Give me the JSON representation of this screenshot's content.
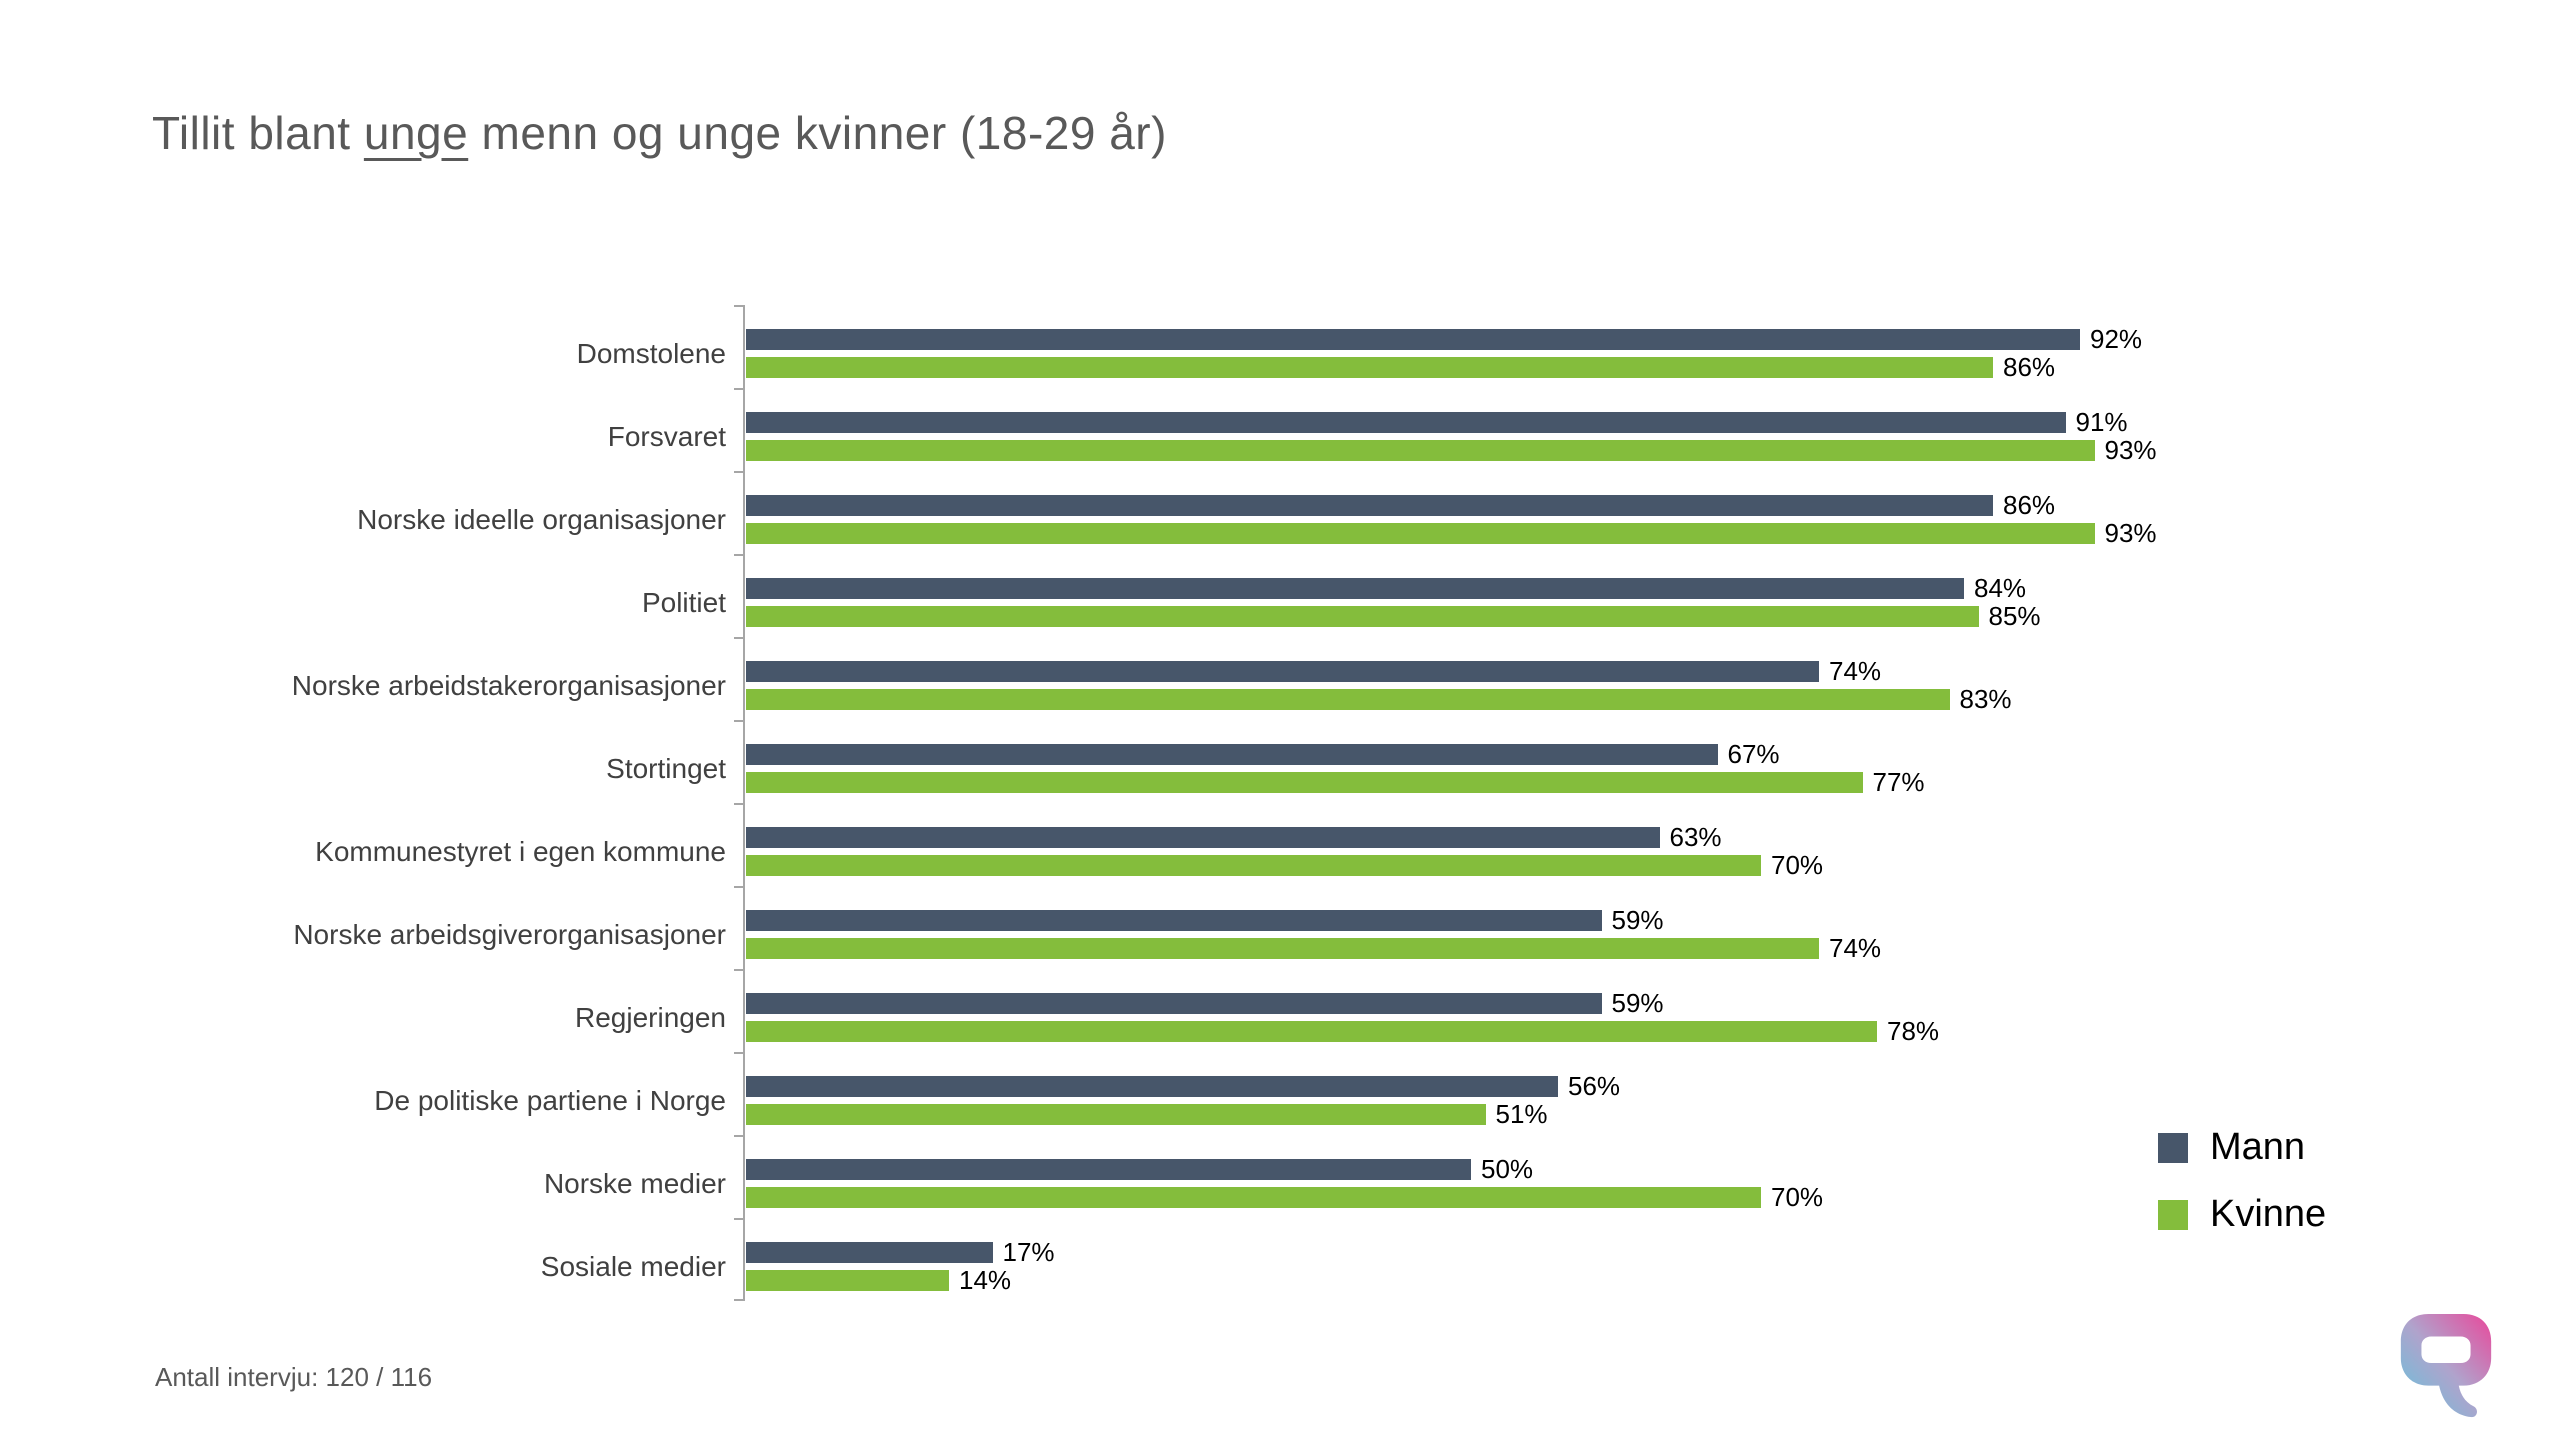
{
  "slide": {
    "title": {
      "prefix": "Tillit blant ",
      "underlined": "unge",
      "suffix": " menn og unge kvinner (18-29 år)"
    },
    "footer": "Antall intervju: 120 / 116"
  },
  "colors": {
    "mann": "#47566A",
    "kvinne": "#84BD3C",
    "axis": "#A6A6A6",
    "title_text": "#595959",
    "category_label": "#404040",
    "value_label": "#000000",
    "logo_gradient_start": "#62C4DC",
    "logo_gradient_end": "#E9489B"
  },
  "chart_data": {
    "type": "bar",
    "orientation": "horizontal",
    "title": "Tillit blant unge menn og unge kvinner (18-29 år)",
    "categories": [
      "Domstolene",
      "Forsvaret",
      "Norske ideelle organisasjoner",
      "Politiet",
      "Norske arbeidstakerorganisasjoner",
      "Stortinget",
      "Kommunestyret i egen kommune",
      "Norske arbeidsgiverorganisasjoner",
      "Regjeringen",
      "De politiske partiene i Norge",
      "Norske medier",
      "Sosiale medier"
    ],
    "series": [
      {
        "name": "Mann",
        "color": "#47566A",
        "values": [
          92,
          91,
          86,
          84,
          74,
          67,
          63,
          59,
          59,
          56,
          50,
          17
        ]
      },
      {
        "name": "Kvinne",
        "color": "#84BD3C",
        "values": [
          86,
          93,
          93,
          85,
          83,
          77,
          70,
          74,
          78,
          51,
          70,
          14
        ]
      }
    ],
    "value_suffix": "%",
    "xlim": [
      0,
      100
    ],
    "grid": false,
    "data_labels": true,
    "legend_position": "bottom-right"
  },
  "logo": {
    "icon": "respons-speech-bubble-logo"
  }
}
